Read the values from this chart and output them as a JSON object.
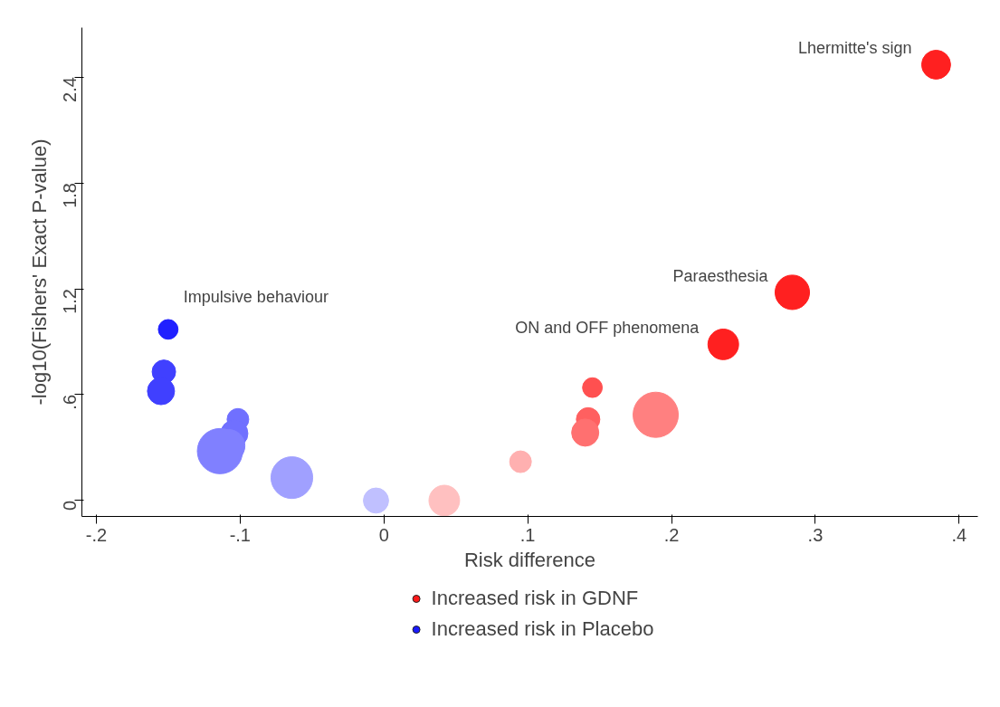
{
  "chart_data": {
    "type": "bubble",
    "xlabel": "Risk difference",
    "ylabel": "-log10(Fishers' Exact P-value)",
    "xlim": [
      -0.21,
      0.413
    ],
    "ylim": [
      -0.09,
      2.68
    ],
    "xticks": [
      {
        "value": -0.2,
        "label": "-.2"
      },
      {
        "value": -0.1,
        "label": "-.1"
      },
      0,
      {
        "value": 0.1,
        "label": ".1"
      },
      {
        "value": 0.2,
        "label": ".2"
      },
      {
        "value": 0.3,
        "label": ".3"
      },
      {
        "value": 0.4,
        "label": ".4"
      }
    ],
    "yticks": [
      0,
      {
        "value": 0.6,
        "label": ".6"
      },
      1.2,
      1.8,
      2.4
    ],
    "grid": false,
    "legend": "bottom",
    "marker": "circle",
    "series": [
      {
        "name": "Increased risk in GDNF",
        "color": "#ff1a1a",
        "x": [
          0.384,
          0.284,
          0.236,
          0.145,
          0.142,
          0.14,
          0.189,
          0.095,
          0.042
        ],
        "values": [
          2.47,
          1.18,
          0.885,
          0.64,
          0.46,
          0.385,
          0.486,
          0.22,
          0.0
        ],
        "sizes": [
          0.41,
          0.58,
          0.46,
          0.19,
          0.27,
          0.36,
          1,
          0.23,
          0.46
        ],
        "colors": [
          "#ff2020",
          "#ff2020",
          "#ff2020",
          "#ff5050",
          "#ff6060",
          "#ff7070",
          "#ff8080",
          "#ffb0b0",
          "#ffc0c0"
        ]
      },
      {
        "name": "Increased risk in Placebo",
        "color": "#1a1aff",
        "x": [
          -0.15,
          -0.153,
          -0.155,
          -0.1015,
          -0.104,
          -0.108,
          -0.114,
          -0.064,
          -0.0055
        ],
        "values": [
          0.97,
          0.73,
          0.62,
          0.46,
          0.38,
          0.31,
          0.28,
          0.13,
          0.0
        ],
        "sizes": [
          0.19,
          0.27,
          0.36,
          0.23,
          0.36,
          0.52,
          1,
          0.85,
          0.31
        ],
        "colors": [
          "#2020ff",
          "#4040ff",
          "#4040ff",
          "#7070ff",
          "#7070ff",
          "#8080ff",
          "#8080ff",
          "#a0a0ff",
          "#c0c0ff"
        ]
      }
    ],
    "annotations": [
      {
        "text": "Lhermitte's sign",
        "x": 0.384,
        "y": 2.47
      },
      {
        "text": "Paraesthesia",
        "x": 0.284,
        "y": 1.18
      },
      {
        "text": "ON and OFF phenomena",
        "x": 0.236,
        "y": 0.885
      },
      {
        "text": "Impulsive behaviour",
        "x": -0.15,
        "y": 0.97
      }
    ]
  }
}
